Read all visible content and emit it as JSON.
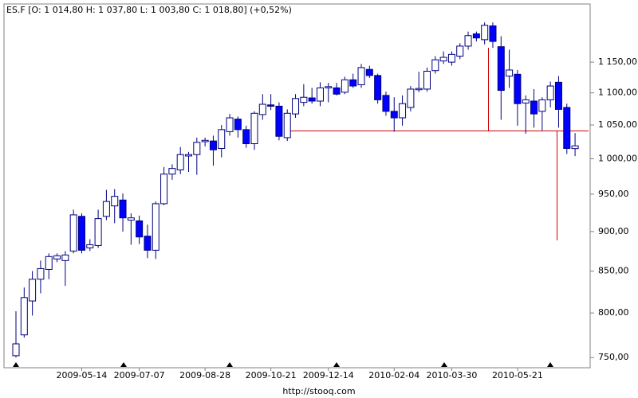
{
  "chart_data": {
    "type": "candlestick",
    "title": "ES.F [O: 1 014,80  H: 1 037,80  L: 1 003,80  C: 1 018,80] (+0,52%)",
    "source": "http://stooq.com",
    "categories": [
      null,
      null,
      null,
      null,
      null,
      null,
      null,
      null,
      "2009-05-14",
      null,
      null,
      null,
      null,
      null,
      null,
      "2009-07-07",
      null,
      null,
      null,
      null,
      null,
      null,
      null,
      "2009-08-28",
      null,
      null,
      null,
      null,
      null,
      null,
      null,
      "2009-10-21",
      null,
      null,
      null,
      null,
      null,
      null,
      "2009-12-14",
      null,
      null,
      null,
      null,
      null,
      null,
      null,
      "2010-02-04",
      null,
      null,
      null,
      null,
      null,
      null,
      "2010-03-30",
      null,
      null,
      null,
      null,
      null,
      null,
      null,
      "2010-05-21",
      null,
      null,
      null,
      null,
      null,
      null,
      null
    ],
    "open": [
      752,
      775,
      814,
      840,
      852,
      865,
      863,
      875,
      920,
      879,
      882,
      920,
      934,
      942,
      915,
      914,
      894,
      876,
      937,
      978,
      984,
      1004,
      1006,
      1025,
      1026,
      1015,
      1040,
      1059,
      1043,
      1022,
      1066,
      1081,
      1079,
      1031,
      1067,
      1085,
      1092,
      1087,
      1108,
      1108,
      1101,
      1121,
      1113,
      1138,
      1128,
      1096,
      1071,
      1061,
      1077,
      1105,
      1106,
      1136,
      1152,
      1150,
      1160,
      1177,
      1198,
      1188,
      1212,
      1176,
      1127,
      1130,
      1084,
      1087,
      1071,
      1089,
      1117,
      1077,
      1014.8
    ],
    "high": [
      802,
      830,
      850,
      863,
      872,
      872,
      875,
      929,
      924,
      890,
      929,
      956,
      957,
      951,
      924,
      921,
      909,
      940,
      988,
      992,
      1017,
      1010,
      1031,
      1031,
      1034,
      1050,
      1067,
      1063,
      1049,
      1071,
      1098,
      1098,
      1085,
      1074,
      1098,
      1114,
      1108,
      1117,
      1116,
      1116,
      1126,
      1131,
      1147,
      1144,
      1131,
      1102,
      1093,
      1096,
      1111,
      1134,
      1141,
      1160,
      1168,
      1168,
      1182,
      1202,
      1202,
      1218,
      1218,
      1194,
      1171,
      1137,
      1096,
      1106,
      1093,
      1118,
      1127,
      1083,
      1037.8
    ],
    "low": [
      750,
      772,
      797,
      823,
      840,
      861,
      832,
      872,
      872,
      875,
      879,
      915,
      911,
      900,
      883,
      884,
      866,
      865,
      935,
      970,
      978,
      981,
      977,
      1018,
      990,
      1002,
      1034,
      1031,
      1016,
      1013,
      1058,
      1073,
      1027,
      1026,
      1061,
      1079,
      1083,
      1079,
      1085,
      1096,
      1098,
      1108,
      1108,
      1124,
      1083,
      1064,
      1040,
      1049,
      1071,
      1101,
      1102,
      1131,
      1147,
      1144,
      1155,
      1171,
      1185,
      1180,
      1174,
      1058,
      1108,
      1049,
      1037,
      1046,
      1042,
      1077,
      1046,
      1007,
      1003.8
    ],
    "close": [
      765,
      818,
      840,
      853,
      868,
      869,
      870,
      922,
      876,
      883,
      917,
      940,
      947,
      918,
      918,
      893,
      876,
      937,
      978,
      986,
      1006,
      1006,
      1024,
      1027,
      1013,
      1043,
      1061,
      1043,
      1022,
      1068,
      1082,
      1079,
      1033,
      1068,
      1091,
      1093,
      1087,
      1108,
      1110,
      1098,
      1121,
      1111,
      1141,
      1128,
      1089,
      1071,
      1061,
      1083,
      1106,
      1107,
      1135,
      1154,
      1158,
      1163,
      1177,
      1195,
      1191,
      1213,
      1185,
      1104,
      1137,
      1083,
      1089,
      1067,
      1089,
      1111,
      1074,
      1015,
      1018.8
    ],
    "up_color": "#ffffff",
    "down_color": "#0000ff",
    "wick_color": "#000080",
    "log_scale": true,
    "grid": false,
    "ylim": [
      739,
      1251
    ],
    "yticks": [
      {
        "value": 750,
        "label": "750,00"
      },
      {
        "value": 800,
        "label": "800,00"
      },
      {
        "value": 850,
        "label": "850,00"
      },
      {
        "value": 900,
        "label": "900,00"
      },
      {
        "value": 950,
        "label": "950,00"
      },
      {
        "value": 1000,
        "label": "1 000,00"
      },
      {
        "value": 1050,
        "label": "1 050,00"
      },
      {
        "value": 1100,
        "label": "1 100,00"
      },
      {
        "value": 1150,
        "label": "1 150,00"
      }
    ]
  }
}
